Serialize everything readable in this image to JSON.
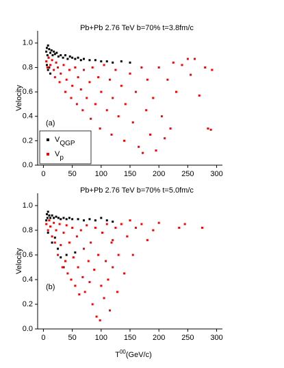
{
  "chart_data": [
    {
      "type": "scatter",
      "title": "Pb+Pb 2.76 TeV b=70% t=3.8fm/c",
      "annotation": "(a)",
      "ylabel": "Velocity",
      "xlim": [
        -10,
        310
      ],
      "ylim": [
        0,
        1.1
      ],
      "xticks": [
        0,
        50,
        100,
        150,
        200,
        250,
        300
      ],
      "yticks": [
        {
          "value": 0,
          "label": "0.0"
        },
        0.2,
        0.4,
        0.6,
        0.8,
        {
          "value": 1,
          "label": "1.0"
        }
      ],
      "legend": "lower left",
      "series": [
        {
          "name": "VQGP",
          "color": "#000000",
          "x": [
            5,
            6,
            7,
            8,
            9,
            10,
            12,
            14,
            16,
            18,
            20,
            23,
            26,
            30,
            34,
            38,
            42,
            46,
            50,
            55,
            60,
            65,
            70,
            80,
            90,
            100,
            110,
            120,
            135,
            150,
            8,
            10,
            6,
            12
          ],
          "values": [
            0.93,
            0.96,
            0.9,
            0.98,
            0.88,
            0.95,
            0.92,
            0.94,
            0.9,
            0.93,
            0.91,
            0.92,
            0.89,
            0.9,
            0.88,
            0.9,
            0.87,
            0.89,
            0.88,
            0.87,
            0.88,
            0.86,
            0.87,
            0.86,
            0.86,
            0.85,
            0.85,
            0.84,
            0.85,
            0.84,
            0.78,
            0.8,
            0.82,
            0.75
          ]
        },
        {
          "name": "Vp",
          "color": "#ff0000",
          "x": [
            5,
            7,
            9,
            12,
            15,
            18,
            20,
            22,
            25,
            28,
            30,
            35,
            38,
            40,
            45,
            48,
            50,
            55,
            58,
            60,
            65,
            68,
            70,
            75,
            80,
            82,
            85,
            90,
            95,
            98,
            100,
            105,
            110,
            115,
            118,
            120,
            125,
            130,
            135,
            140,
            142,
            150,
            155,
            160,
            165,
            170,
            172,
            178,
            180,
            185,
            190,
            195,
            200,
            205,
            210,
            215,
            220,
            225,
            230,
            240,
            250,
            255,
            262,
            270,
            280,
            285,
            292,
            290
          ],
          "values": [
            0.85,
            0.8,
            0.88,
            0.82,
            0.86,
            0.78,
            0.72,
            0.84,
            0.8,
            0.68,
            0.75,
            0.82,
            0.6,
            0.7,
            0.78,
            0.55,
            0.65,
            0.8,
            0.5,
            0.72,
            0.62,
            0.45,
            0.78,
            0.55,
            0.68,
            0.38,
            0.8,
            0.5,
            0.72,
            0.3,
            0.6,
            0.82,
            0.45,
            0.7,
            0.25,
            0.55,
            0.78,
            0.4,
            0.65,
            0.2,
            0.5,
            0.75,
            0.35,
            0.6,
            0.15,
            0.8,
            0.1,
            0.45,
            0.7,
            0.25,
            0.55,
            0.12,
            0.8,
            0.4,
            0.22,
            0.7,
            0.3,
            0.84,
            0.6,
            0.82,
            0.87,
            0.74,
            0.87,
            0.57,
            0.8,
            0.3,
            0.78,
            0.29
          ]
        }
      ]
    },
    {
      "type": "scatter",
      "title": "Pb+Pb 2.76 TeV b=70% t=5.0fm/c",
      "annotation": "(b)",
      "ylabel": "Velocity",
      "xlabel": "T00(GeV/c)",
      "xlim": [
        -10,
        310
      ],
      "ylim": [
        0,
        1.1
      ],
      "xticks": [
        0,
        50,
        100,
        150,
        200,
        250,
        300
      ],
      "yticks": [
        {
          "value": 0,
          "label": "0.0"
        },
        0.2,
        0.4,
        0.6,
        0.8,
        {
          "value": 1,
          "label": "1.0"
        }
      ],
      "series": [
        {
          "color": "#000000",
          "x": [
            5,
            6,
            7,
            8,
            10,
            12,
            15,
            18,
            22,
            26,
            30,
            35,
            40,
            45,
            50,
            60,
            70,
            80,
            90,
            100,
            110,
            120,
            30,
            25,
            40,
            15,
            8,
            20,
            55,
            35
          ],
          "values": [
            0.88,
            0.93,
            0.9,
            0.95,
            0.92,
            0.9,
            0.92,
            0.9,
            0.91,
            0.9,
            0.89,
            0.9,
            0.89,
            0.9,
            0.89,
            0.89,
            0.88,
            0.89,
            0.88,
            0.9,
            0.88,
            0.87,
            0.58,
            0.65,
            0.6,
            0.7,
            0.78,
            0.74,
            0.62,
            0.5
          ]
        },
        {
          "color": "#ff0000",
          "x": [
            5,
            8,
            10,
            12,
            15,
            18,
            20,
            22,
            25,
            28,
            30,
            33,
            35,
            38,
            40,
            42,
            45,
            48,
            50,
            52,
            55,
            58,
            60,
            62,
            65,
            68,
            70,
            72,
            75,
            78,
            80,
            82,
            85,
            88,
            90,
            92,
            95,
            98,
            100,
            102,
            105,
            108,
            110,
            112,
            115,
            118,
            120,
            125,
            128,
            130,
            135,
            140,
            145,
            150,
            155,
            160,
            170,
            180,
            190,
            200,
            235,
            245,
            275,
            120
          ],
          "values": [
            0.85,
            0.8,
            0.88,
            0.83,
            0.75,
            0.86,
            0.7,
            0.8,
            0.6,
            0.85,
            0.68,
            0.5,
            0.78,
            0.55,
            0.84,
            0.45,
            0.7,
            0.4,
            0.82,
            0.58,
            0.35,
            0.75,
            0.5,
            0.28,
            0.8,
            0.42,
            0.65,
            0.3,
            0.84,
            0.55,
            0.38,
            0.7,
            0.2,
            0.48,
            0.82,
            0.1,
            0.6,
            0.07,
            0.35,
            0.78,
            0.25,
            0.55,
            0.85,
            0.4,
            0.15,
            0.7,
            0.5,
            0.82,
            0.3,
            0.6,
            0.85,
            0.45,
            0.75,
            0.88,
            0.6,
            0.82,
            0.85,
            0.72,
            0.8,
            0.86,
            0.82,
            0.85,
            0.82,
            0.72
          ]
        }
      ]
    }
  ]
}
